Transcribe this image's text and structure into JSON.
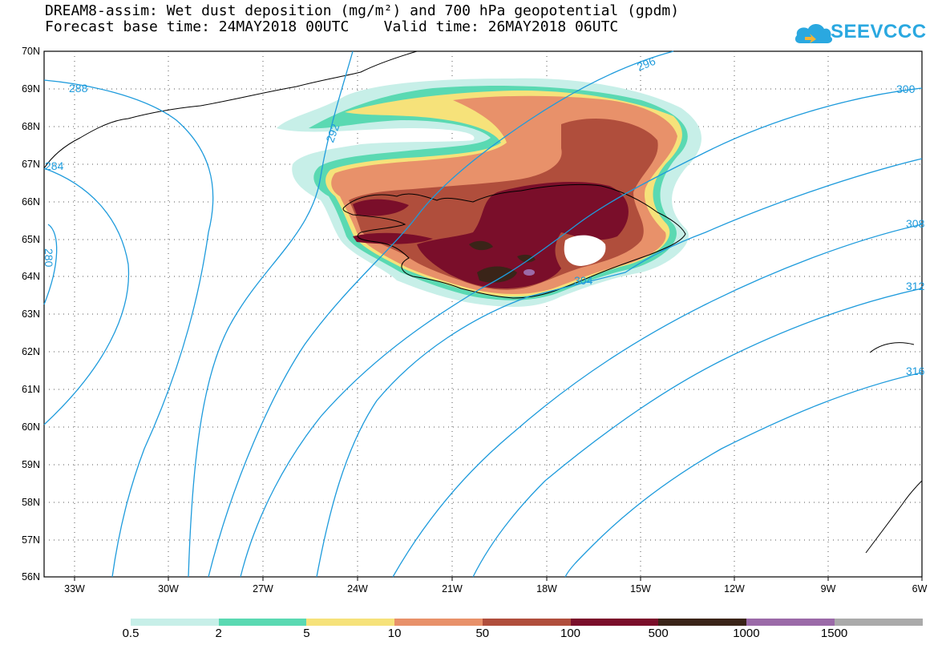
{
  "title": {
    "line1": "DREAM8-assim: Wet dust deposition (mg/m²) and 700 hPa geopotential (gpdm)",
    "line2": "Forecast base time: 24MAY2018 00UTC    Valid time: 26MAY2018 06UTC"
  },
  "logo": {
    "text": "SEEVCCC",
    "icon": "cloud-icon"
  },
  "map": {
    "lat_labels": [
      "70N",
      "69N",
      "68N",
      "67N",
      "66N",
      "65N",
      "64N",
      "63N",
      "62N",
      "61N",
      "60N",
      "59N",
      "58N",
      "57N",
      "56N"
    ],
    "lon_labels": [
      "33W",
      "30W",
      "27W",
      "24W",
      "21W",
      "18W",
      "15W",
      "12W",
      "9W",
      "6W"
    ],
    "contour_labels": [
      "288",
      "292",
      "296",
      "300",
      "304",
      "308",
      "312",
      "316",
      "280",
      "284"
    ],
    "contour_color": "#1e9bdc"
  },
  "colorbar": {
    "labels": [
      "0.5",
      "2",
      "5",
      "10",
      "50",
      "100",
      "500",
      "1000",
      "1500"
    ],
    "colors": [
      "#c7efe8",
      "#5ad9b2",
      "#f6e27a",
      "#e8916a",
      "#b04e3c",
      "#7a0e2a",
      "#3a2418",
      "#9b6aa8",
      "#aaaaaa"
    ]
  }
}
